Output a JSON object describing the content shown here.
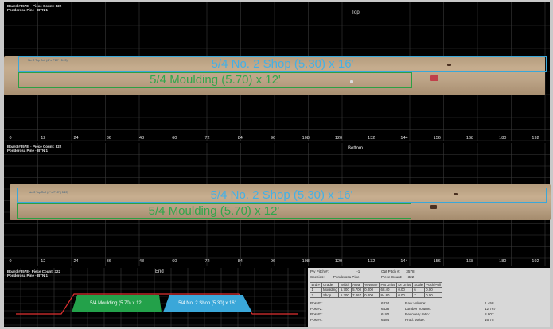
{
  "top_panel": {
    "label_line1": "Board #3578  · Piece Count: 322",
    "label_line2": "Ponderosa Pine · BTN 1",
    "title": "Top",
    "cuts": [
      {
        "label": "5/4 No. 2 Shop (5.30) x 16'",
        "note": "No. 2 Top Refl (4\" x 7'10\" | 5.20)"
      },
      {
        "label": "5/4 Moulding (5.70) x 12'"
      }
    ]
  },
  "bottom_panel": {
    "label_line1": "Board #3578  · Piece Count: 322",
    "label_line2": "Ponderosa Pine · BTN 1",
    "title": "Bottom",
    "cuts": [
      {
        "label": "5/4 No. 2 Shop (5.30) x 16'",
        "note": "No. 2 Top Refl (4\" x 7'10\" | 5.20)"
      },
      {
        "label": "5/4 Moulding (5.70) x 12'"
      }
    ]
  },
  "ruler": [
    "0",
    "12",
    "24",
    "36",
    "48",
    "60",
    "72",
    "84",
    "96",
    "108",
    "120",
    "132",
    "144",
    "156",
    "168",
    "180",
    "192"
  ],
  "end_panel": {
    "label_line1": "Board #3578 · Piece Count: 322",
    "label_line2": "Ponderosa Pine · BTN 1",
    "title": "End",
    "green_label": "5/4 Moulding (5.70) x 12'",
    "blue_label": "5/4 No. 2 Shop (5.30) x 16'"
  },
  "info": {
    "ply_pitch_label": "Ply Pitch #:",
    "ply_pitch": "-1",
    "opt_pitch_label": "Opt Pitch #:",
    "opt_pitch": "3578",
    "species_label": "Species:",
    "species": "Ponderosa Pine",
    "piece_count_label": "Piece Count:",
    "piece_count": "322",
    "table_headers": [
      "Brd #",
      "Grade",
      "Width",
      "Area",
      "% Wane",
      "Pnt Units",
      "Dr Units",
      "Scale",
      "Push/Pull"
    ],
    "table_rows": [
      [
        "1",
        "Moulding",
        "5.700",
        "5.700",
        "0.000",
        "68.40",
        "0.00",
        "6",
        "0.00"
      ],
      [
        "2",
        "Shop",
        "5.300",
        "7.067",
        "0.000",
        "84.80",
        "0.00",
        "7",
        "0.00"
      ]
    ],
    "pos_rows": [
      {
        "label": "Pos #1:",
        "val": "6334",
        "k": "Raw volume:",
        "v": "1.458"
      },
      {
        "label": "Pos #2:",
        "val": "6428",
        "k": "Lumber volume:",
        "v": "12.767"
      },
      {
        "label": "Pos #3:",
        "val": "6180",
        "k": "Recovery ratio:",
        "v": "8.807"
      },
      {
        "label": "Pos #4:",
        "val": "6484",
        "k": "Prod. Value:",
        "v": "16.75"
      }
    ]
  }
}
